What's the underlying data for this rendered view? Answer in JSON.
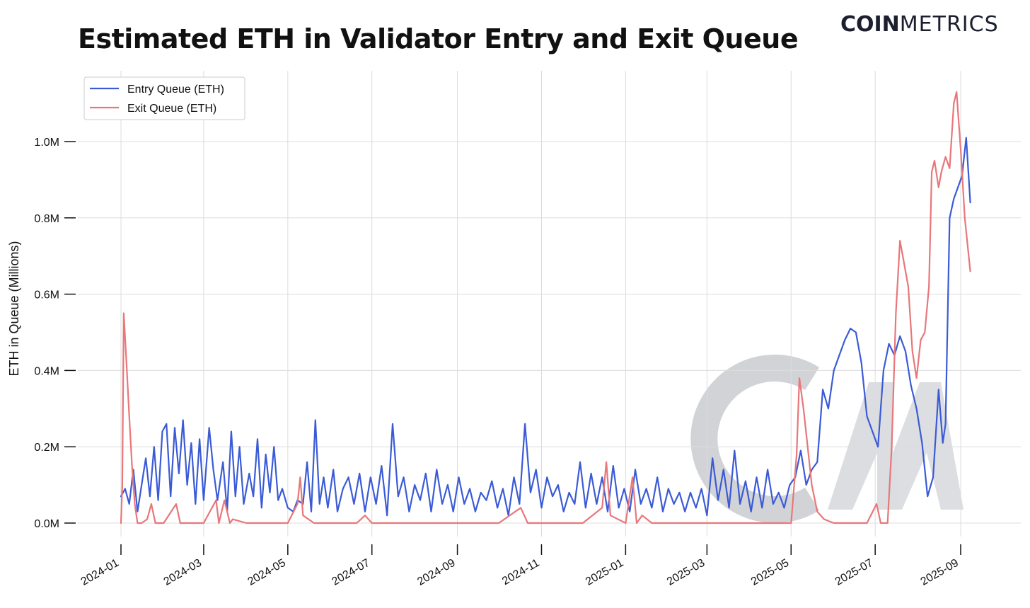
{
  "chart_title": "Estimated ETH in Validator Entry and Exit Queue",
  "brand": {
    "bold": "COIN",
    "light": "METRICS"
  },
  "colors": {
    "entry": "#3b5bd6",
    "exit": "#e8777a",
    "watermark": "#9aa0ab"
  },
  "chart_data": {
    "type": "line",
    "title": "Estimated ETH in Validator Entry and Exit Queue",
    "xlabel": "",
    "ylabel": "ETH in Queue (Millions)",
    "ylim": [
      0,
      1.15
    ],
    "y_ticks": [
      0.0,
      0.2,
      0.4,
      0.6,
      0.8,
      1.0
    ],
    "y_tick_labels": [
      "0.0M",
      "0.2M",
      "0.4M",
      "0.6M",
      "0.8M",
      "1.0M"
    ],
    "x_range": [
      "2024-01-01",
      "2025-09-08"
    ],
    "x_ticks": [
      "2024-01",
      "2024-03",
      "2024-05",
      "2024-07",
      "2024-09",
      "2024-11",
      "2025-01",
      "2025-03",
      "2025-05",
      "2025-07",
      "2025-09"
    ],
    "grid": true,
    "legend_position": "top-left",
    "series": [
      {
        "name": "Entry Queue (ETH)",
        "color": "#3b5bd6",
        "dates": [
          "2024-01-01",
          "2024-01-04",
          "2024-01-07",
          "2024-01-10",
          "2024-01-13",
          "2024-01-16",
          "2024-01-19",
          "2024-01-22",
          "2024-01-25",
          "2024-01-28",
          "2024-01-31",
          "2024-02-03",
          "2024-02-06",
          "2024-02-09",
          "2024-02-12",
          "2024-02-15",
          "2024-02-18",
          "2024-02-21",
          "2024-02-24",
          "2024-02-27",
          "2024-03-01",
          "2024-03-05",
          "2024-03-08",
          "2024-03-11",
          "2024-03-15",
          "2024-03-18",
          "2024-03-21",
          "2024-03-24",
          "2024-03-27",
          "2024-03-30",
          "2024-04-03",
          "2024-04-06",
          "2024-04-09",
          "2024-04-12",
          "2024-04-15",
          "2024-04-18",
          "2024-04-21",
          "2024-04-24",
          "2024-04-27",
          "2024-05-01",
          "2024-05-05",
          "2024-05-08",
          "2024-05-12",
          "2024-05-15",
          "2024-05-18",
          "2024-05-21",
          "2024-05-24",
          "2024-05-27",
          "2024-05-30",
          "2024-06-03",
          "2024-06-06",
          "2024-06-10",
          "2024-06-14",
          "2024-06-18",
          "2024-06-22",
          "2024-06-26",
          "2024-06-30",
          "2024-07-04",
          "2024-07-08",
          "2024-07-12",
          "2024-07-16",
          "2024-07-20",
          "2024-07-24",
          "2024-07-28",
          "2024-08-01",
          "2024-08-05",
          "2024-08-09",
          "2024-08-13",
          "2024-08-17",
          "2024-08-21",
          "2024-08-25",
          "2024-08-29",
          "2024-09-02",
          "2024-09-06",
          "2024-09-10",
          "2024-09-14",
          "2024-09-18",
          "2024-09-22",
          "2024-09-26",
          "2024-09-30",
          "2024-10-04",
          "2024-10-08",
          "2024-10-12",
          "2024-10-16",
          "2024-10-20",
          "2024-10-24",
          "2024-10-28",
          "2024-11-01",
          "2024-11-05",
          "2024-11-09",
          "2024-11-13",
          "2024-11-17",
          "2024-11-21",
          "2024-11-25",
          "2024-11-29",
          "2024-12-03",
          "2024-12-07",
          "2024-12-11",
          "2024-12-15",
          "2024-12-19",
          "2024-12-23",
          "2024-12-27",
          "2024-12-31",
          "2025-01-04",
          "2025-01-08",
          "2025-01-12",
          "2025-01-16",
          "2025-01-20",
          "2025-01-24",
          "2025-01-28",
          "2025-02-01",
          "2025-02-05",
          "2025-02-09",
          "2025-02-13",
          "2025-02-17",
          "2025-02-21",
          "2025-02-25",
          "2025-03-01",
          "2025-03-05",
          "2025-03-09",
          "2025-03-13",
          "2025-03-17",
          "2025-03-21",
          "2025-03-25",
          "2025-03-29",
          "2025-04-02",
          "2025-04-06",
          "2025-04-10",
          "2025-04-14",
          "2025-04-18",
          "2025-04-22",
          "2025-04-26",
          "2025-04-30",
          "2025-05-04",
          "2025-05-08",
          "2025-05-12",
          "2025-05-16",
          "2025-05-20",
          "2025-05-24",
          "2025-05-28",
          "2025-06-01",
          "2025-06-05",
          "2025-06-09",
          "2025-06-13",
          "2025-06-17",
          "2025-06-21",
          "2025-06-25",
          "2025-06-29",
          "2025-07-03",
          "2025-07-07",
          "2025-07-11",
          "2025-07-15",
          "2025-07-19",
          "2025-07-23",
          "2025-07-27",
          "2025-07-31",
          "2025-08-04",
          "2025-08-08",
          "2025-08-12",
          "2025-08-16",
          "2025-08-19",
          "2025-08-21",
          "2025-08-24",
          "2025-08-27",
          "2025-08-30",
          "2025-09-02",
          "2025-09-05",
          "2025-09-08"
        ],
        "values": [
          0.07,
          0.09,
          0.05,
          0.14,
          0.03,
          0.1,
          0.17,
          0.07,
          0.2,
          0.06,
          0.24,
          0.26,
          0.07,
          0.25,
          0.13,
          0.27,
          0.1,
          0.21,
          0.05,
          0.22,
          0.06,
          0.25,
          0.14,
          0.06,
          0.16,
          0.03,
          0.24,
          0.07,
          0.2,
          0.05,
          0.13,
          0.07,
          0.22,
          0.04,
          0.18,
          0.08,
          0.2,
          0.06,
          0.09,
          0.04,
          0.03,
          0.06,
          0.05,
          0.16,
          0.03,
          0.27,
          0.05,
          0.12,
          0.04,
          0.14,
          0.03,
          0.09,
          0.12,
          0.05,
          0.13,
          0.03,
          0.12,
          0.05,
          0.15,
          0.02,
          0.26,
          0.07,
          0.12,
          0.03,
          0.1,
          0.06,
          0.13,
          0.03,
          0.14,
          0.05,
          0.1,
          0.03,
          0.12,
          0.05,
          0.09,
          0.03,
          0.08,
          0.06,
          0.11,
          0.04,
          0.09,
          0.02,
          0.12,
          0.05,
          0.26,
          0.08,
          0.14,
          0.04,
          0.12,
          0.07,
          0.1,
          0.03,
          0.08,
          0.05,
          0.16,
          0.04,
          0.13,
          0.05,
          0.12,
          0.03,
          0.15,
          0.04,
          0.09,
          0.03,
          0.14,
          0.05,
          0.09,
          0.04,
          0.12,
          0.03,
          0.09,
          0.05,
          0.08,
          0.03,
          0.08,
          0.04,
          0.09,
          0.02,
          0.17,
          0.06,
          0.14,
          0.04,
          0.19,
          0.05,
          0.11,
          0.03,
          0.12,
          0.04,
          0.14,
          0.05,
          0.08,
          0.04,
          0.1,
          0.12,
          0.19,
          0.1,
          0.14,
          0.16,
          0.35,
          0.3,
          0.4,
          0.44,
          0.48,
          0.51,
          0.5,
          0.42,
          0.28,
          0.24,
          0.2,
          0.4,
          0.47,
          0.44,
          0.49,
          0.45,
          0.36,
          0.3,
          0.21,
          0.07,
          0.12,
          0.35,
          0.21,
          0.26,
          0.8,
          0.85,
          0.88,
          0.91,
          1.01,
          0.84
        ]
      },
      {
        "name": "Exit Queue (ETH)",
        "color": "#e8777a",
        "dates": [
          "2024-01-01",
          "2024-01-02",
          "2024-01-03",
          "2024-01-05",
          "2024-01-07",
          "2024-01-09",
          "2024-01-11",
          "2024-01-13",
          "2024-01-16",
          "2024-01-20",
          "2024-01-23",
          "2024-01-26",
          "2024-02-01",
          "2024-02-10",
          "2024-02-13",
          "2024-02-20",
          "2024-03-01",
          "2024-03-10",
          "2024-03-12",
          "2024-03-16",
          "2024-03-20",
          "2024-03-22",
          "2024-04-01",
          "2024-04-10",
          "2024-04-20",
          "2024-05-01",
          "2024-05-08",
          "2024-05-10",
          "2024-05-12",
          "2024-05-20",
          "2024-06-01",
          "2024-06-20",
          "2024-06-26",
          "2024-07-01",
          "2024-07-15",
          "2024-08-01",
          "2024-08-20",
          "2024-09-01",
          "2024-09-20",
          "2024-10-01",
          "2024-10-13",
          "2024-10-17",
          "2024-10-22",
          "2024-11-01",
          "2024-11-10",
          "2024-11-28",
          "2024-12-01",
          "2024-12-15",
          "2024-12-18",
          "2024-12-21",
          "2025-01-01",
          "2025-01-06",
          "2025-01-09",
          "2025-01-13",
          "2025-01-20",
          "2025-02-01",
          "2025-02-15",
          "2025-03-01",
          "2025-03-15",
          "2025-03-30",
          "2025-04-10",
          "2025-04-20",
          "2025-05-01",
          "2025-05-05",
          "2025-05-07",
          "2025-05-10",
          "2025-05-13",
          "2025-05-16",
          "2025-05-20",
          "2025-05-25",
          "2025-06-01",
          "2025-06-15",
          "2025-06-25",
          "2025-07-02",
          "2025-07-05",
          "2025-07-08",
          "2025-07-10",
          "2025-07-13",
          "2025-07-16",
          "2025-07-19",
          "2025-07-22",
          "2025-07-25",
          "2025-07-28",
          "2025-07-31",
          "2025-08-03",
          "2025-08-06",
          "2025-08-09",
          "2025-08-11",
          "2025-08-13",
          "2025-08-16",
          "2025-08-18",
          "2025-08-21",
          "2025-08-24",
          "2025-08-27",
          "2025-08-29",
          "2025-09-01",
          "2025-09-04",
          "2025-09-08"
        ],
        "values": [
          0.0,
          0.1,
          0.55,
          0.42,
          0.28,
          0.15,
          0.05,
          0.0,
          0.0,
          0.01,
          0.05,
          0.0,
          0.0,
          0.05,
          0.0,
          0.0,
          0.0,
          0.06,
          0.0,
          0.06,
          0.0,
          0.01,
          0.0,
          0.0,
          0.0,
          0.0,
          0.05,
          0.12,
          0.02,
          0.0,
          0.0,
          0.0,
          0.02,
          0.0,
          0.0,
          0.0,
          0.0,
          0.0,
          0.0,
          0.0,
          0.03,
          0.04,
          0.0,
          0.0,
          0.0,
          0.0,
          0.0,
          0.04,
          0.16,
          0.02,
          0.0,
          0.12,
          0.0,
          0.02,
          0.0,
          0.0,
          0.0,
          0.0,
          0.0,
          0.0,
          0.0,
          0.0,
          0.0,
          0.18,
          0.38,
          0.3,
          0.2,
          0.1,
          0.03,
          0.01,
          0.0,
          0.0,
          0.0,
          0.05,
          0.0,
          0.0,
          0.0,
          0.2,
          0.55,
          0.74,
          0.68,
          0.62,
          0.45,
          0.38,
          0.48,
          0.5,
          0.62,
          0.92,
          0.95,
          0.88,
          0.92,
          0.96,
          0.93,
          1.1,
          1.13,
          0.98,
          0.8,
          0.66
        ]
      }
    ]
  },
  "legend": [
    {
      "label": "Entry Queue (ETH)",
      "color": "#3b5bd6"
    },
    {
      "label": "Exit Queue (ETH)",
      "color": "#e8777a"
    }
  ]
}
